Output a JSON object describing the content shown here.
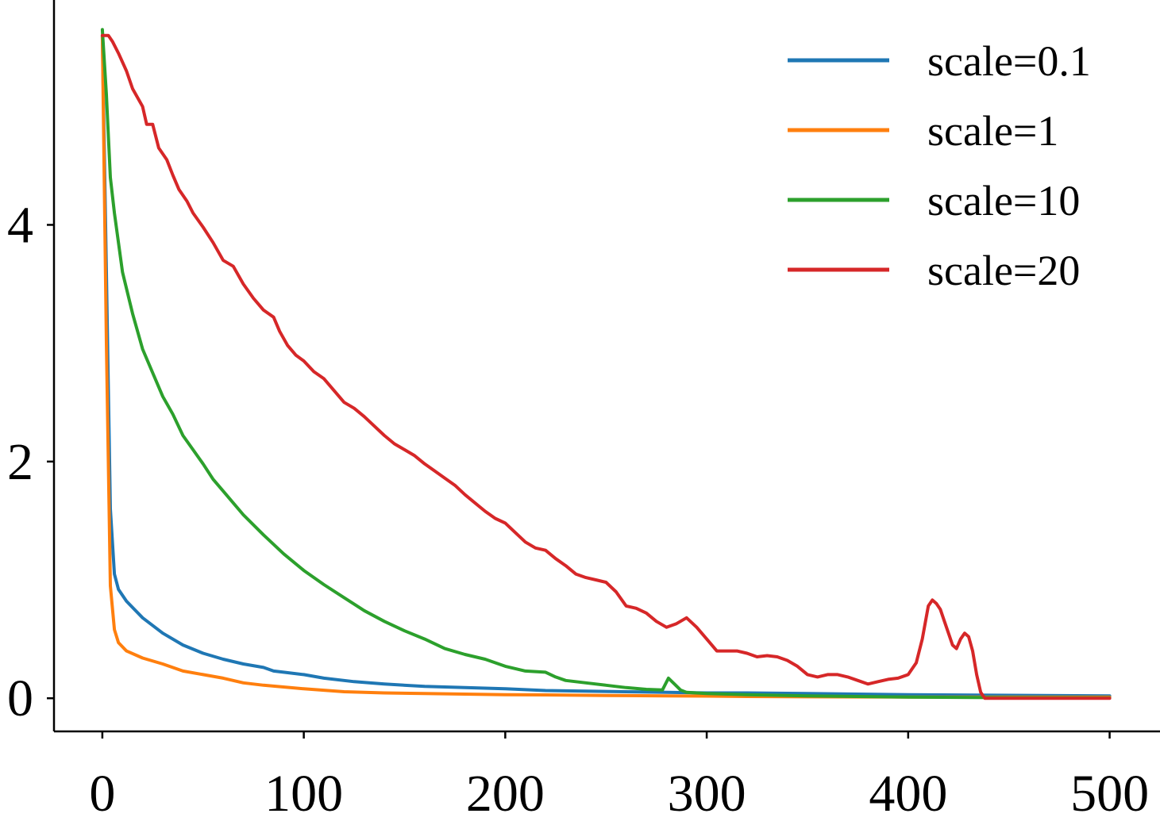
{
  "chart_data": {
    "type": "line",
    "title": "",
    "xlabel": "",
    "ylabel": "",
    "xlim": [
      -24,
      525
    ],
    "ylim": [
      -0.28,
      5.9
    ],
    "x_ticks": [
      {
        "value": 0,
        "label": "0"
      },
      {
        "value": 100,
        "label": "100"
      },
      {
        "value": 200,
        "label": "200"
      },
      {
        "value": 300,
        "label": "300"
      },
      {
        "value": 400,
        "label": "400"
      },
      {
        "value": 500,
        "label": "500"
      }
    ],
    "y_ticks": [
      {
        "value": 0,
        "label": "0"
      },
      {
        "value": 2,
        "label": "2"
      },
      {
        "value": 4,
        "label": "4"
      }
    ],
    "grid": false,
    "legend_position": "top-right",
    "series": [
      {
        "name": "scale=0.1",
        "color": "#1f77b4",
        "points": [
          [
            0,
            5.6
          ],
          [
            2,
            3.6
          ],
          [
            4,
            1.6
          ],
          [
            6,
            1.05
          ],
          [
            8,
            0.92
          ],
          [
            12,
            0.82
          ],
          [
            20,
            0.68
          ],
          [
            30,
            0.55
          ],
          [
            40,
            0.45
          ],
          [
            50,
            0.38
          ],
          [
            60,
            0.33
          ],
          [
            70,
            0.29
          ],
          [
            80,
            0.26
          ],
          [
            85,
            0.23
          ],
          [
            90,
            0.22
          ],
          [
            100,
            0.2
          ],
          [
            110,
            0.17
          ],
          [
            125,
            0.14
          ],
          [
            140,
            0.12
          ],
          [
            160,
            0.1
          ],
          [
            180,
            0.09
          ],
          [
            200,
            0.08
          ],
          [
            220,
            0.065
          ],
          [
            240,
            0.06
          ],
          [
            260,
            0.055
          ],
          [
            280,
            0.05
          ],
          [
            300,
            0.045
          ],
          [
            320,
            0.045
          ],
          [
            350,
            0.04
          ],
          [
            400,
            0.03
          ],
          [
            450,
            0.025
          ],
          [
            500,
            0.02
          ]
        ]
      },
      {
        "name": "scale=1",
        "color": "#ff7f0e",
        "points": [
          [
            0,
            5.6
          ],
          [
            2,
            3.0
          ],
          [
            4,
            0.95
          ],
          [
            6,
            0.58
          ],
          [
            8,
            0.47
          ],
          [
            12,
            0.4
          ],
          [
            20,
            0.34
          ],
          [
            30,
            0.29
          ],
          [
            40,
            0.23
          ],
          [
            50,
            0.2
          ],
          [
            60,
            0.17
          ],
          [
            70,
            0.13
          ],
          [
            80,
            0.11
          ],
          [
            100,
            0.08
          ],
          [
            120,
            0.055
          ],
          [
            140,
            0.045
          ],
          [
            160,
            0.04
          ],
          [
            180,
            0.035
          ],
          [
            200,
            0.03
          ],
          [
            220,
            0.028
          ],
          [
            240,
            0.025
          ],
          [
            260,
            0.022
          ],
          [
            280,
            0.02
          ],
          [
            300,
            0.018
          ],
          [
            320,
            0.015
          ],
          [
            350,
            0.012
          ],
          [
            400,
            0.01
          ],
          [
            450,
            0.01
          ],
          [
            500,
            0.01
          ]
        ]
      },
      {
        "name": "scale=10",
        "color": "#2ca02c",
        "points": [
          [
            0,
            5.65
          ],
          [
            2,
            5.1
          ],
          [
            4,
            4.4
          ],
          [
            6,
            4.1
          ],
          [
            10,
            3.6
          ],
          [
            15,
            3.25
          ],
          [
            20,
            2.95
          ],
          [
            25,
            2.75
          ],
          [
            30,
            2.55
          ],
          [
            35,
            2.4
          ],
          [
            40,
            2.22
          ],
          [
            45,
            2.1
          ],
          [
            50,
            1.98
          ],
          [
            55,
            1.85
          ],
          [
            60,
            1.75
          ],
          [
            70,
            1.55
          ],
          [
            80,
            1.38
          ],
          [
            90,
            1.22
          ],
          [
            100,
            1.08
          ],
          [
            110,
            0.96
          ],
          [
            120,
            0.85
          ],
          [
            130,
            0.74
          ],
          [
            140,
            0.65
          ],
          [
            150,
            0.57
          ],
          [
            160,
            0.5
          ],
          [
            170,
            0.42
          ],
          [
            180,
            0.37
          ],
          [
            190,
            0.33
          ],
          [
            200,
            0.27
          ],
          [
            210,
            0.23
          ],
          [
            220,
            0.22
          ],
          [
            225,
            0.18
          ],
          [
            230,
            0.15
          ],
          [
            240,
            0.13
          ],
          [
            250,
            0.11
          ],
          [
            260,
            0.09
          ],
          [
            270,
            0.075
          ],
          [
            278,
            0.07
          ],
          [
            281,
            0.17
          ],
          [
            284,
            0.12
          ],
          [
            287,
            0.07
          ],
          [
            290,
            0.05
          ],
          [
            300,
            0.04
          ],
          [
            320,
            0.03
          ],
          [
            350,
            0.02
          ],
          [
            400,
            0.01
          ],
          [
            450,
            0.005
          ],
          [
            500,
            0.003
          ]
        ]
      },
      {
        "name": "scale=20",
        "color": "#d62728",
        "points": [
          [
            0,
            5.6
          ],
          [
            3,
            5.6
          ],
          [
            5,
            5.55
          ],
          [
            8,
            5.45
          ],
          [
            12,
            5.3
          ],
          [
            15,
            5.15
          ],
          [
            20,
            5.0
          ],
          [
            22,
            4.85
          ],
          [
            25,
            4.85
          ],
          [
            28,
            4.65
          ],
          [
            32,
            4.55
          ],
          [
            35,
            4.42
          ],
          [
            38,
            4.3
          ],
          [
            42,
            4.2
          ],
          [
            45,
            4.1
          ],
          [
            50,
            3.98
          ],
          [
            55,
            3.85
          ],
          [
            60,
            3.7
          ],
          [
            65,
            3.65
          ],
          [
            70,
            3.5
          ],
          [
            75,
            3.38
          ],
          [
            80,
            3.28
          ],
          [
            85,
            3.22
          ],
          [
            88,
            3.1
          ],
          [
            92,
            2.98
          ],
          [
            96,
            2.9
          ],
          [
            100,
            2.85
          ],
          [
            105,
            2.76
          ],
          [
            110,
            2.7
          ],
          [
            115,
            2.6
          ],
          [
            120,
            2.5
          ],
          [
            125,
            2.45
          ],
          [
            130,
            2.38
          ],
          [
            135,
            2.3
          ],
          [
            140,
            2.22
          ],
          [
            145,
            2.15
          ],
          [
            150,
            2.1
          ],
          [
            155,
            2.05
          ],
          [
            160,
            1.98
          ],
          [
            165,
            1.92
          ],
          [
            170,
            1.86
          ],
          [
            175,
            1.8
          ],
          [
            180,
            1.72
          ],
          [
            185,
            1.65
          ],
          [
            190,
            1.58
          ],
          [
            195,
            1.52
          ],
          [
            200,
            1.48
          ],
          [
            205,
            1.4
          ],
          [
            210,
            1.32
          ],
          [
            215,
            1.27
          ],
          [
            220,
            1.25
          ],
          [
            225,
            1.18
          ],
          [
            230,
            1.12
          ],
          [
            235,
            1.05
          ],
          [
            240,
            1.02
          ],
          [
            245,
            1.0
          ],
          [
            250,
            0.98
          ],
          [
            255,
            0.9
          ],
          [
            260,
            0.78
          ],
          [
            265,
            0.76
          ],
          [
            270,
            0.72
          ],
          [
            275,
            0.65
          ],
          [
            280,
            0.6
          ],
          [
            285,
            0.63
          ],
          [
            290,
            0.68
          ],
          [
            295,
            0.6
          ],
          [
            300,
            0.5
          ],
          [
            305,
            0.4
          ],
          [
            310,
            0.4
          ],
          [
            315,
            0.4
          ],
          [
            320,
            0.38
          ],
          [
            325,
            0.35
          ],
          [
            330,
            0.36
          ],
          [
            335,
            0.35
          ],
          [
            340,
            0.32
          ],
          [
            345,
            0.27
          ],
          [
            350,
            0.2
          ],
          [
            355,
            0.18
          ],
          [
            360,
            0.2
          ],
          [
            365,
            0.2
          ],
          [
            370,
            0.18
          ],
          [
            375,
            0.15
          ],
          [
            380,
            0.12
          ],
          [
            385,
            0.14
          ],
          [
            390,
            0.16
          ],
          [
            395,
            0.17
          ],
          [
            400,
            0.2
          ],
          [
            404,
            0.3
          ],
          [
            407,
            0.5
          ],
          [
            410,
            0.78
          ],
          [
            412,
            0.83
          ],
          [
            414,
            0.8
          ],
          [
            416,
            0.75
          ],
          [
            418,
            0.65
          ],
          [
            420,
            0.55
          ],
          [
            422,
            0.45
          ],
          [
            424,
            0.42
          ],
          [
            426,
            0.5
          ],
          [
            428,
            0.55
          ],
          [
            430,
            0.52
          ],
          [
            432,
            0.4
          ],
          [
            434,
            0.2
          ],
          [
            436,
            0.05
          ],
          [
            438,
            0.0
          ],
          [
            445,
            0.0
          ],
          [
            500,
            0.0
          ]
        ]
      }
    ]
  }
}
